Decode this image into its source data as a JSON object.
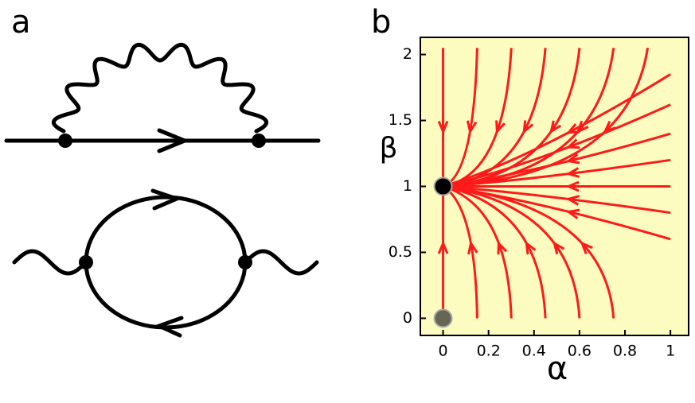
{
  "panels": [
    {
      "label": "a"
    },
    {
      "label": "b",
      "x_label": "α",
      "y_label": "β",
      "xlim": [
        -0.1,
        1.08
      ],
      "ylim": [
        -0.13,
        2.13
      ],
      "xticks": [
        0,
        0.2,
        0.4,
        0.6,
        0.8,
        1
      ],
      "yticks": [
        0,
        0.5,
        1,
        1.5,
        2
      ],
      "fixed_points": [
        {
          "x": 0,
          "y": 1,
          "color": "#000000"
        },
        {
          "x": 0,
          "y": 0,
          "color": "#666655"
        }
      ],
      "background": "#fcfcc0",
      "line_color": "#ff1a1a"
    }
  ]
}
